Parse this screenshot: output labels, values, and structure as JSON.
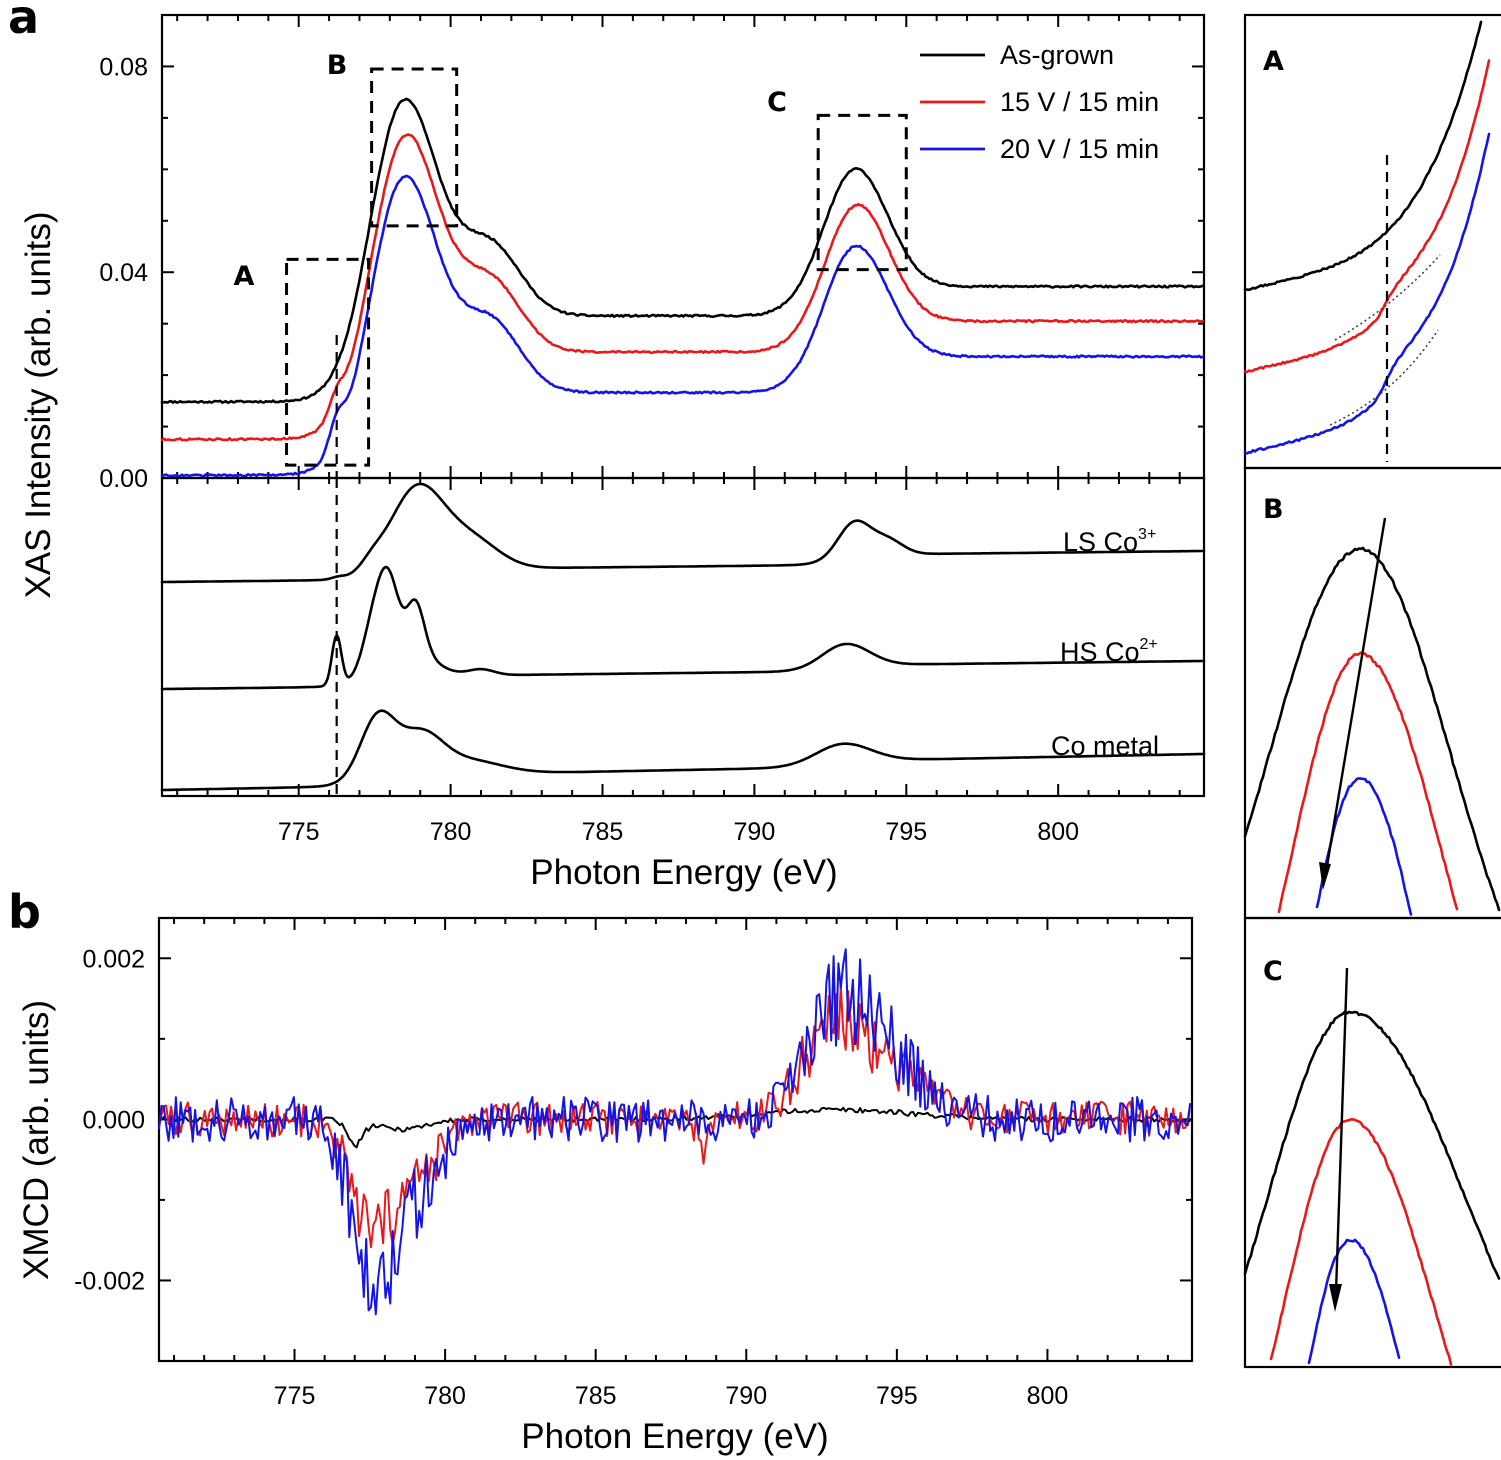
{
  "colors": {
    "as_grown": "#000000",
    "v15": "#e8191b",
    "v20": "#1414e6",
    "reference": "#000000"
  },
  "chart_data": [
    {
      "id": "a-xas",
      "panel": "a",
      "type": "line",
      "xlabel": "Photon Energy (eV)",
      "ylabel": "XAS Intensity (arb. units)",
      "xlim": [
        770.5,
        804.8
      ],
      "ylim": [
        0.0,
        0.09
      ],
      "x_ticks": [
        775,
        780,
        785,
        790,
        795,
        800
      ],
      "x_tick_labels": [
        "775",
        "780",
        "785",
        "790",
        "795",
        "800"
      ],
      "y_ticks": [
        0.0,
        0.04,
        0.08
      ],
      "y_tick_labels": [
        "0.00",
        "0.04",
        "0.08"
      ],
      "legend": {
        "position": "top-right",
        "entries": [
          "As-grown",
          "15 V / 15 min",
          "20 V / 15 min"
        ]
      },
      "series": [
        {
          "name": "As-grown",
          "color_key": "as_grown",
          "base": 0.0148,
          "post": 0.0395,
          "l3_peak_x": 778.45,
          "l3_peak": 0.0745,
          "l2_peak_x": 793.3,
          "l2_peak": 0.0635,
          "valley": 0.0338,
          "shoulder_a": 0.0
        },
        {
          "name": "15 V / 15 min",
          "color_key": "v15",
          "base": 0.0075,
          "post": 0.0328,
          "l3_peak_x": 778.5,
          "l3_peak": 0.0675,
          "l2_peak_x": 793.35,
          "l2_peak": 0.0565,
          "valley": 0.0268,
          "shoulder_a": 0.0035
        },
        {
          "name": "20 V / 15 min",
          "color_key": "v20",
          "base": 0.0005,
          "post": 0.0258,
          "l3_peak_x": 778.45,
          "l3_peak": 0.0595,
          "l2_peak_x": 793.3,
          "l2_peak": 0.0485,
          "valley": 0.0188,
          "shoulder_a": 0.005
        }
      ],
      "regions": [
        {
          "label": "A",
          "x_range": [
            774.6,
            777.3
          ],
          "y_range": [
            0.0025,
            0.0425
          ]
        },
        {
          "label": "B",
          "x_range": [
            777.4,
            780.2
          ],
          "y_range": [
            0.049,
            0.0795
          ]
        },
        {
          "label": "C",
          "x_range": [
            792.1,
            795.0
          ],
          "y_range": [
            0.0405,
            0.0705
          ]
        }
      ],
      "marker_line_x": 776.25
    },
    {
      "id": "a-references",
      "panel": "a",
      "type": "line",
      "xlim": [
        770.5,
        804.8
      ],
      "x_tick_labels": [
        "775",
        "780",
        "785",
        "790",
        "795",
        "800"
      ],
      "series": [
        {
          "name": "LS Co3+",
          "label_main": "LS Co",
          "label_sup": "3+",
          "color_key": "reference"
        },
        {
          "name": "HS Co2+",
          "label_main": "HS Co",
          "label_sup": "2+",
          "color_key": "reference"
        },
        {
          "name": "Co metal",
          "label_main": "Co metal",
          "label_sup": "",
          "color_key": "reference"
        }
      ]
    },
    {
      "id": "b-xmcd",
      "panel": "b",
      "type": "line",
      "xlabel": "Photon Energy (eV)",
      "ylabel": "XMCD (arb. units)",
      "xlim": [
        770.5,
        804.8
      ],
      "ylim": [
        -0.003,
        0.0025
      ],
      "x_ticks": [
        775,
        780,
        785,
        790,
        795,
        800
      ],
      "x_tick_labels": [
        "775",
        "780",
        "785",
        "790",
        "795",
        "800"
      ],
      "y_ticks": [
        0.002,
        0.0,
        -0.002
      ],
      "y_tick_labels": [
        "0.002",
        "0.000",
        "-0.002"
      ],
      "series": [
        {
          "name": "As-grown",
          "color_key": "as_grown",
          "min_x": 777.0,
          "min": -0.0003,
          "max_x": 793.0,
          "max": 0.00012,
          "noise": 3e-05
        },
        {
          "name": "15 V / 15 min",
          "color_key": "v15",
          "min_x": 777.6,
          "min": -0.0014,
          "max_x": 792.8,
          "max": 0.0011,
          "noise": 0.00022
        },
        {
          "name": "20 V / 15 min",
          "color_key": "v20",
          "min_x": 777.6,
          "min": -0.0019,
          "max_x": 793.0,
          "max": 0.0013,
          "noise": 0.00028
        }
      ]
    },
    {
      "id": "inset-A",
      "type": "line",
      "title": "A",
      "note": "zoom of region A; vertical dashed line at 776.25 eV, dotted lines mark shoulders"
    },
    {
      "id": "inset-B",
      "type": "line",
      "title": "B",
      "note": "zoom of region B; arrow marks decreasing L3 peak with voltage"
    },
    {
      "id": "inset-C",
      "type": "line",
      "title": "C",
      "note": "zoom of region C; arrow marks decreasing L2 peak with voltage"
    }
  ],
  "figure": {
    "panel_a_letter": "a",
    "panel_b_letter": "b"
  }
}
